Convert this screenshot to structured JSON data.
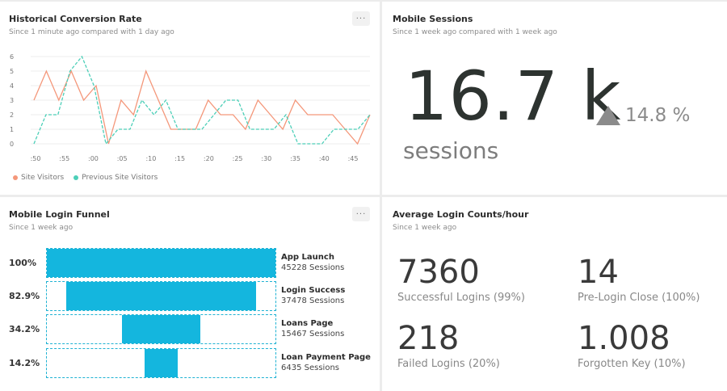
{
  "conversion": {
    "title": "Historical Conversion Rate",
    "subtitle": "Since 1 minute ago compared with 1 day ago",
    "menu": "...",
    "legend": [
      "Site Visitors",
      "Previous Site Visitors"
    ]
  },
  "colors": {
    "visitors": "#f4977a",
    "previous": "#4ccfb8",
    "funnel": "#14b6de",
    "grid": "#ececec"
  },
  "chart_data": {
    "type": "line",
    "ylim": [
      0,
      6
    ],
    "y_ticks": [
      "0",
      "1",
      "2",
      "3",
      "4",
      "5",
      "6"
    ],
    "x_ticks": [
      ":50",
      ":55",
      ":00",
      ":05",
      ":10",
      ":15",
      ":20",
      ":25",
      ":30",
      ":35",
      ":40",
      ":45"
    ],
    "series": [
      {
        "name": "Site Visitors",
        "values": [
          3,
          5,
          3,
          5,
          3,
          4,
          0,
          3,
          2,
          5,
          3,
          1,
          1,
          1,
          3,
          2,
          2,
          1,
          3,
          2,
          1,
          3,
          2,
          2,
          2,
          1,
          0,
          2
        ]
      },
      {
        "name": "Previous Site Visitors",
        "values": [
          0,
          2,
          2,
          5,
          6,
          4,
          0,
          1,
          1,
          3,
          2,
          3,
          1,
          1,
          1,
          2,
          3,
          3,
          1,
          1,
          1,
          2,
          0,
          0,
          0,
          1,
          1,
          1,
          2
        ]
      }
    ]
  },
  "sessions": {
    "title": "Mobile Sessions",
    "subtitle": "Since 1 week ago compared with 1 week ago",
    "value": "16.7 k",
    "change": "14.8 %",
    "unit": "sessions"
  },
  "funnel": {
    "title": "Mobile Login Funnel",
    "subtitle": "Since 1 week ago",
    "menu": "...",
    "steps": [
      {
        "pct": "100%",
        "fraction": 1.0,
        "label": "App Launch",
        "sessions": "45228 Sessions"
      },
      {
        "pct": "82.9%",
        "fraction": 0.829,
        "label": "Login Success",
        "sessions": "37478 Sessions"
      },
      {
        "pct": "34.2%",
        "fraction": 0.342,
        "label": "Loans Page",
        "sessions": "15467 Sessions"
      },
      {
        "pct": "14.2%",
        "fraction": 0.142,
        "label": "Loan Payment Page",
        "sessions": "6435 Sessions"
      }
    ]
  },
  "logins": {
    "title": "Average Login Counts/hour",
    "subtitle": "Since 1 week ago",
    "stats": [
      {
        "value": "7360",
        "label": "Successful Logins (99%)"
      },
      {
        "value": "14",
        "label": "Pre-Login Close (100%)"
      },
      {
        "value": "218",
        "label": "Failed Logins (20%)"
      },
      {
        "value": "1.008",
        "label": "Forgotten Key (10%)"
      }
    ]
  }
}
